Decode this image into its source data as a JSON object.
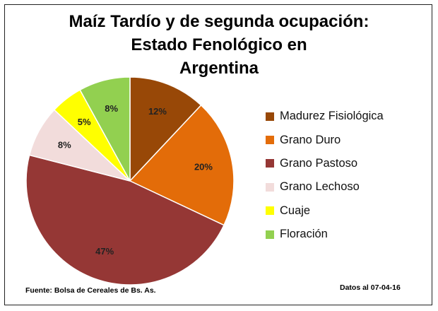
{
  "chart_data": {
    "type": "pie",
    "title_lines": [
      "Maíz Tardío y de segunda ocupación:",
      "Estado Fenológico en",
      "Argentina"
    ],
    "categories": [
      "Madurez Fisiológica",
      "Grano Duro",
      "Grano Pastoso",
      "Grano Lechoso",
      "Cuaje",
      "Floración"
    ],
    "values": [
      12,
      20,
      47,
      8,
      5,
      8
    ],
    "data_labels": [
      "12%",
      "20%",
      "47%",
      "8%",
      "5%",
      "8%"
    ],
    "colors": [
      "#984807",
      "#E36C09",
      "#953735",
      "#F2DCDB",
      "#FFFF00",
      "#92D050"
    ],
    "legend_position": "right",
    "start": "12 o'clock",
    "direction": "clockwise"
  },
  "footer": {
    "source": "Fuente: Bolsa de Cereales de Bs. As.",
    "date": "Datos al 07-04-16"
  }
}
